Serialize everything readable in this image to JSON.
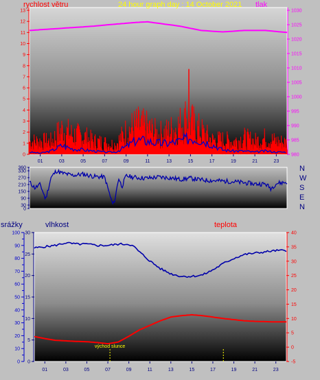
{
  "title": "24 hour graph day : 14 October 2021",
  "colors": {
    "wind": "#ff0000",
    "gust_line": "#0000cc",
    "pressure": "#ff00ff",
    "direction": "#0000aa",
    "humidity": "#0000aa",
    "temperature": "#ff0000",
    "rain_axis": "#0000cc",
    "title": "#ffff00",
    "sunrise": "#ffff00"
  },
  "chart_data": [
    {
      "type": "line",
      "name": "wind-pressure",
      "left_axis_label": "rychlost větru",
      "right_axis_label": "tlak",
      "xlim": [
        0,
        24
      ],
      "x_ticks": [
        "01",
        "03",
        "05",
        "07",
        "09",
        "11",
        "13",
        "15",
        "17",
        "19",
        "21",
        "23"
      ],
      "y_left_ticks": [
        "0",
        "1",
        "2",
        "3",
        "4",
        "5",
        "6",
        "7",
        "8",
        "9",
        "10",
        "11",
        "12",
        "13"
      ],
      "y_right_ticks": [
        "980",
        "985",
        "990",
        "995",
        "1000",
        "1005",
        "1010",
        "1015",
        "1020",
        "1025",
        "1030"
      ],
      "ylim_left": [
        0,
        13
      ],
      "ylim_right": [
        980,
        1030
      ],
      "pressure": {
        "x": [
          0,
          2,
          4,
          6,
          8,
          10,
          11,
          12,
          14,
          16,
          18,
          20,
          22,
          24
        ],
        "y": [
          1023,
          1023.5,
          1024,
          1024.5,
          1025.2,
          1025.8,
          1026,
          1025.5,
          1024.5,
          1023,
          1022.5,
          1023,
          1023,
          1022.3
        ]
      },
      "wind_envelope": {
        "x": [
          0,
          1,
          2,
          3,
          4,
          5,
          6,
          7,
          8,
          9,
          10,
          11,
          12,
          13,
          14,
          14.5,
          15,
          15.5,
          16,
          17,
          18,
          19,
          20,
          21,
          22,
          23,
          24
        ],
        "y": [
          2,
          2,
          2,
          3.8,
          3,
          2.8,
          2,
          1.8,
          1.5,
          3.5,
          4.5,
          4,
          3,
          3.5,
          4.5,
          5.5,
          5,
          4.2,
          3.5,
          2.2,
          2.2,
          2,
          2.5,
          2,
          2.5,
          2,
          1.8
        ]
      },
      "wind_average": {
        "x": [
          0,
          1,
          2,
          3,
          4,
          5,
          6,
          7,
          8,
          9,
          10,
          11,
          12,
          13,
          14,
          15,
          16,
          17,
          18,
          19,
          20,
          21,
          22,
          23,
          24
        ],
        "y": [
          0.2,
          0.1,
          0.3,
          0.8,
          0.5,
          0.4,
          0.3,
          0.2,
          0.2,
          0.7,
          1.3,
          1.2,
          1.0,
          1.0,
          1.2,
          1.5,
          1.3,
          0.9,
          0.4,
          0.3,
          0.3,
          0.2,
          0.3,
          0.2,
          0.2
        ]
      }
    },
    {
      "type": "line",
      "name": "wind-direction",
      "xlim": [
        0,
        24
      ],
      "y_ticks": [
        "0",
        "30",
        "90",
        "150",
        "210",
        "270",
        "330",
        "360"
      ],
      "y_tick_values": [
        0,
        30,
        90,
        150,
        210,
        270,
        330,
        360
      ],
      "ylim": [
        0,
        360
      ],
      "right_labels": [
        "N",
        "W",
        "S",
        "E",
        "N"
      ],
      "x": [
        0,
        0.5,
        1,
        1.5,
        2,
        2.5,
        3,
        4,
        5,
        6,
        7,
        7.6,
        7.8,
        8,
        8.3,
        8.6,
        9,
        10,
        11,
        12,
        13,
        14,
        15,
        16,
        17,
        18,
        19,
        20,
        21,
        22,
        22.5,
        23,
        24
      ],
      "y": [
        230,
        180,
        210,
        80,
        270,
        330,
        310,
        290,
        300,
        280,
        275,
        80,
        30,
        100,
        270,
        190,
        285,
        270,
        265,
        275,
        270,
        255,
        265,
        250,
        245,
        240,
        235,
        225,
        215,
        215,
        175,
        220,
        230
      ]
    },
    {
      "type": "line",
      "name": "humidity-temperature-rain",
      "left_outer_label": "srážky",
      "left_inner_label": "vlhkost",
      "right_label": "teplota",
      "sunrise_label": "východ slunce",
      "xlim": [
        0,
        24
      ],
      "rain_ticks": [
        "0",
        "5",
        "10",
        "15",
        "20",
        "25",
        "30",
        "35",
        "40",
        "45",
        "50",
        "55",
        "60",
        "65",
        "70",
        "75",
        "80",
        "85",
        "90",
        "95",
        "100"
      ],
      "humidity_ticks": [
        "0",
        "5",
        "10",
        "15",
        "20",
        "25",
        "30"
      ],
      "temperature_ticks": [
        "-5",
        "0",
        "5",
        "10",
        "15",
        "20",
        "25",
        "30",
        "35",
        "40"
      ],
      "humidity_ylim": [
        0,
        100
      ],
      "temperature_ylim": [
        -5,
        40
      ],
      "humidity": {
        "x": [
          0,
          1,
          2,
          3,
          4,
          5,
          6,
          7,
          8,
          9,
          9.5,
          10,
          11,
          12,
          13,
          14,
          15,
          16,
          17,
          18,
          19,
          20,
          21,
          22,
          23,
          24
        ],
        "y": [
          88,
          89,
          90,
          92,
          91,
          91,
          90,
          90,
          91,
          91,
          89,
          85,
          78,
          72,
          68,
          66,
          66,
          67,
          71,
          76,
          80,
          83,
          84,
          85,
          86,
          86
        ]
      },
      "temperature": {
        "x": [
          0,
          1,
          2,
          3,
          4,
          5,
          6,
          7,
          8,
          9,
          10,
          11,
          12,
          13,
          14,
          15,
          16,
          17,
          18,
          19,
          20,
          21,
          22,
          23,
          24
        ],
        "y": [
          3.7,
          3.0,
          2.4,
          2.2,
          2.0,
          1.9,
          1.6,
          1.2,
          1.8,
          3.8,
          6.0,
          7.6,
          9.2,
          10.5,
          11.0,
          11.3,
          11.0,
          10.5,
          10.0,
          9.6,
          9.2,
          9.0,
          8.9,
          8.8,
          8.8
        ]
      },
      "sunrise_hour": 7.2,
      "sunset_hour": 18.0
    }
  ]
}
